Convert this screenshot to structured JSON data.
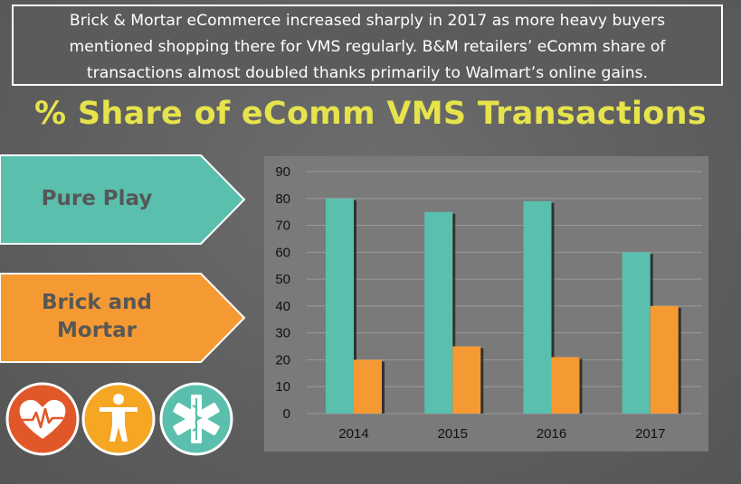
{
  "callout": {
    "line1": "Brick & Mortar eCommerce increased sharply in 2017 as more heavy buyers",
    "line2": "mentioned shopping there for VMS regularly. B&M retailers’ eComm share of",
    "line3": "transactions almost doubled thanks primarily to Walmart’s online gains."
  },
  "chart_data": {
    "type": "bar",
    "title": "% Share of eComm VMS Transactions",
    "categories": [
      "2014",
      "2015",
      "2016",
      "2017"
    ],
    "series": [
      {
        "name": "Pure Play",
        "values": [
          80,
          75,
          79,
          60
        ],
        "color": "#5abfad"
      },
      {
        "name": "Brick and Mortar",
        "values": [
          20,
          25,
          21,
          40
        ],
        "color": "#f59a33"
      }
    ],
    "ylim": [
      0,
      90
    ],
    "yticks": [
      "0",
      "10",
      "20",
      "30",
      "40",
      "50",
      "60",
      "70",
      "80",
      "90"
    ],
    "grid": true,
    "xlabel": "",
    "ylabel": ""
  },
  "legend": {
    "pure_play_lines": [
      "Pure Play"
    ],
    "brick_lines": [
      "Brick and",
      "Mortar"
    ],
    "pure_play_color": "#5abfad",
    "brick_color": "#f59a33"
  },
  "icons": [
    {
      "name": "heart-pulse-icon",
      "color": "#e0582a"
    },
    {
      "name": "human-figure-icon",
      "color": "#f5a623"
    },
    {
      "name": "medical-star-icon",
      "color": "#5abfad"
    }
  ]
}
